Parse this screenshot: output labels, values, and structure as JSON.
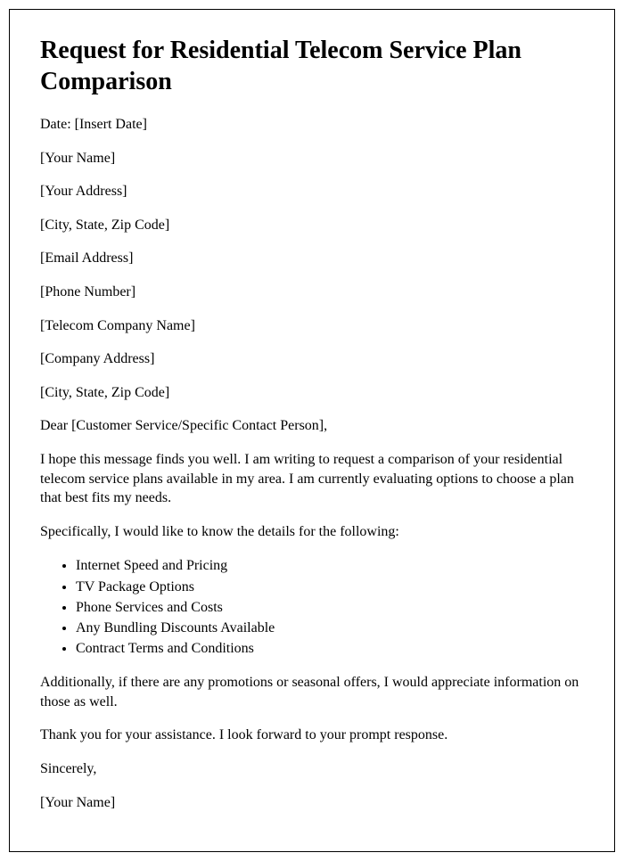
{
  "document": {
    "title": "Request for Residential Telecom Service Plan Comparison",
    "date_line": "Date: [Insert Date]",
    "sender_name": "[Your Name]",
    "sender_address": "[Your Address]",
    "sender_city": "[City, State, Zip Code]",
    "sender_email": "[Email Address]",
    "sender_phone": "[Phone Number]",
    "recipient_company": "[Telecom Company Name]",
    "recipient_address": "[Company Address]",
    "recipient_city": "[City, State, Zip Code]",
    "salutation": "Dear [Customer Service/Specific Contact Person],",
    "intro_paragraph": "I hope this message finds you well. I am writing to request a comparison of your residential telecom service plans available in my area. I am currently evaluating options to choose a plan that best fits my needs.",
    "details_intro": "Specifically, I would like to know the details for the following:",
    "details_list": [
      "Internet Speed and Pricing",
      "TV Package Options",
      "Phone Services and Costs",
      "Any Bundling Discounts Available",
      "Contract Terms and Conditions"
    ],
    "promotions_paragraph": "Additionally, if there are any promotions or seasonal offers, I would appreciate information on those as well.",
    "closing_thanks": "Thank you for your assistance. I look forward to your prompt response.",
    "closing": "Sincerely,",
    "signature": "[Your Name]"
  },
  "style": {
    "border_color": "#000000",
    "background_color": "#ffffff",
    "title_fontsize": 28,
    "body_fontsize": 16,
    "font_family": "Times New Roman"
  }
}
